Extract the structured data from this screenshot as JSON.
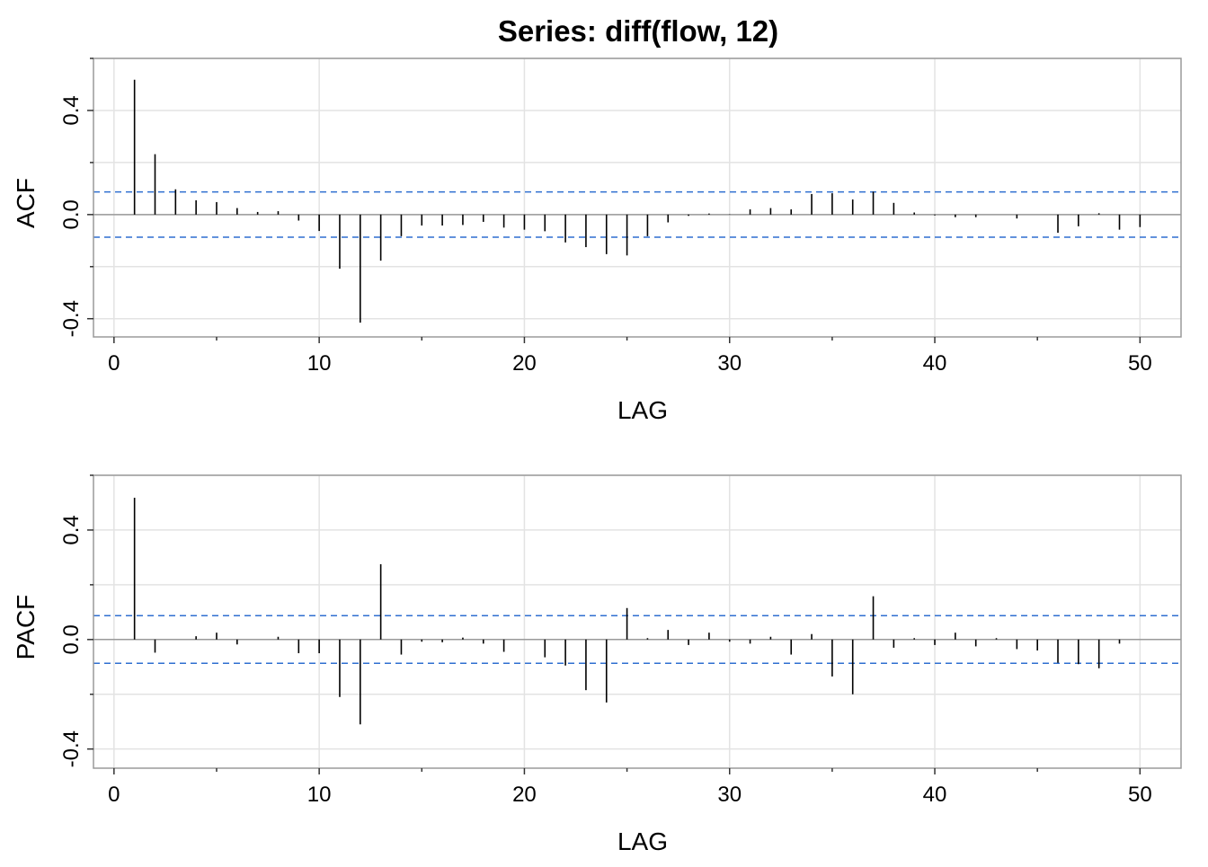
{
  "title": "Series:  diff(flow, 12)",
  "chart_data": [
    {
      "type": "bar",
      "name": "acf",
      "ylabel": "ACF",
      "xlabel": "LAG",
      "xlim": [
        -1,
        52
      ],
      "ylim": [
        -0.47,
        0.6
      ],
      "xticks": [
        0,
        10,
        20,
        30,
        40,
        50
      ],
      "yticks": [
        -0.4,
        0.0,
        0.4
      ],
      "ytick_labels": [
        "-0.4",
        "0.0",
        "0.4"
      ],
      "minor_xticks": [
        5,
        15,
        25,
        35,
        45
      ],
      "minor_yticks": [
        -0.2,
        0.2,
        0.6
      ],
      "grid": true,
      "conf_bound": 0.087,
      "lags": [
        1,
        2,
        3,
        4,
        5,
        6,
        7,
        8,
        9,
        10,
        11,
        12,
        13,
        14,
        15,
        16,
        17,
        18,
        19,
        20,
        21,
        22,
        23,
        24,
        25,
        26,
        27,
        28,
        29,
        30,
        31,
        32,
        33,
        34,
        35,
        36,
        37,
        38,
        39,
        40,
        41,
        42,
        43,
        44,
        45,
        46,
        47,
        48,
        49,
        50
      ],
      "values": [
        0.518,
        0.232,
        0.097,
        0.055,
        0.048,
        0.025,
        0.01,
        0.013,
        -0.023,
        -0.063,
        -0.208,
        -0.415,
        -0.177,
        -0.083,
        -0.042,
        -0.042,
        -0.04,
        -0.028,
        -0.05,
        -0.058,
        -0.064,
        -0.107,
        -0.125,
        -0.152,
        -0.157,
        -0.083,
        -0.03,
        -0.005,
        0.004,
        0.001,
        0.02,
        0.025,
        0.02,
        0.079,
        0.082,
        0.058,
        0.088,
        0.045,
        0.008,
        -0.003,
        -0.01,
        -0.01,
        0.0,
        -0.015,
        0.0,
        -0.07,
        -0.045,
        0.005,
        -0.058,
        -0.048
      ]
    },
    {
      "type": "bar",
      "name": "pacf",
      "ylabel": "PACF",
      "xlabel": "LAG",
      "xlim": [
        -1,
        52
      ],
      "ylim": [
        -0.47,
        0.6
      ],
      "xticks": [
        0,
        10,
        20,
        30,
        40,
        50
      ],
      "yticks": [
        -0.4,
        0.0,
        0.4
      ],
      "ytick_labels": [
        "-0.4",
        "0.0",
        "0.4"
      ],
      "minor_xticks": [
        5,
        15,
        25,
        35,
        45
      ],
      "minor_yticks": [
        -0.2,
        0.2,
        0.6
      ],
      "grid": true,
      "conf_bound": 0.087,
      "lags": [
        1,
        2,
        3,
        4,
        5,
        6,
        7,
        8,
        9,
        10,
        11,
        12,
        13,
        14,
        15,
        16,
        17,
        18,
        19,
        20,
        21,
        22,
        23,
        24,
        25,
        26,
        27,
        28,
        29,
        30,
        31,
        32,
        33,
        34,
        35,
        36,
        37,
        38,
        39,
        40,
        41,
        42,
        43,
        44,
        45,
        46,
        47,
        48,
        49
      ],
      "values": [
        0.518,
        -0.048,
        0.0,
        0.012,
        0.025,
        -0.018,
        0.0,
        0.01,
        -0.05,
        -0.05,
        -0.21,
        -0.31,
        0.275,
        -0.055,
        -0.008,
        -0.01,
        0.007,
        -0.015,
        -0.045,
        0.0,
        -0.065,
        -0.095,
        -0.185,
        -0.23,
        0.115,
        0.005,
        0.035,
        -0.02,
        0.025,
        -0.008,
        -0.015,
        0.01,
        -0.055,
        0.02,
        -0.135,
        -0.2,
        0.158,
        -0.03,
        0.005,
        -0.02,
        0.025,
        -0.025,
        0.005,
        -0.035,
        -0.04,
        -0.085,
        -0.09,
        -0.105,
        -0.015
      ]
    }
  ]
}
